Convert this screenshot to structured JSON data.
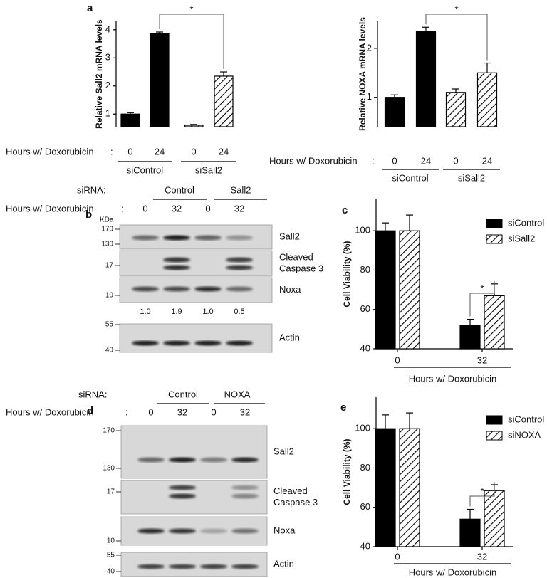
{
  "panels": [
    "a",
    "b",
    "c",
    "d",
    "e"
  ],
  "chart_data": [
    {
      "type": "bar",
      "ylabel": "Relative Sall2 mRNA levels",
      "xlabel": "Hours w/ Doxorubicin",
      "xlabel_sep": ":",
      "categories": [
        "0",
        "24"
      ],
      "ylim": [
        0.55,
        4.3
      ],
      "yticks": [
        1,
        2,
        3,
        4
      ],
      "significance": "*",
      "series": [
        {
          "name": "siControl",
          "color": "#000000",
          "pattern": "solid",
          "values": [
            1.0,
            3.87
          ],
          "errors": [
            0.05,
            0.05
          ]
        },
        {
          "name": "siSall2",
          "color": "#000000",
          "pattern": "hatch",
          "values": [
            0.6,
            2.35
          ],
          "errors": [
            0.03,
            0.15
          ]
        }
      ]
    },
    {
      "type": "bar",
      "ylabel": "Relative NOXA mRNA levels",
      "xlabel": "Hours w/ Doxorubicin",
      "xlabel_sep": ":",
      "categories": [
        "0",
        "24"
      ],
      "ylim": [
        0.4,
        2.55
      ],
      "yticks": [
        1,
        2
      ],
      "significance": "*",
      "series": [
        {
          "name": "siControl",
          "color": "#000000",
          "pattern": "solid",
          "values": [
            1.0,
            2.35
          ],
          "errors": [
            0.05,
            0.08
          ]
        },
        {
          "name": "siSall2",
          "color": "#000000",
          "pattern": "hatch",
          "values": [
            1.1,
            1.5
          ],
          "errors": [
            0.07,
            0.2
          ]
        }
      ]
    },
    {
      "type": "bar",
      "ylabel": "Cell Viability (%)",
      "xlabel": "Hours w/ Doxorubicin",
      "legend": "upper right",
      "categories": [
        "0",
        "32"
      ],
      "ylim": [
        40,
        116
      ],
      "yticks": [
        40,
        60,
        80,
        100
      ],
      "significance": "*",
      "series": [
        {
          "name": "siControl",
          "color": "#000000",
          "pattern": "solid",
          "values": [
            100,
            52
          ],
          "errors": [
            4,
            3
          ]
        },
        {
          "name": "siSall2",
          "color": "#000000",
          "pattern": "hatch",
          "values": [
            100,
            67
          ],
          "errors": [
            8,
            6
          ]
        }
      ]
    },
    {
      "type": "bar",
      "ylabel": "Cell Viability (%)",
      "xlabel": "Hours w/ Doxorubicin",
      "legend": "upper right",
      "categories": [
        "0",
        "32"
      ],
      "ylim": [
        40,
        116
      ],
      "yticks": [
        40,
        60,
        80,
        100
      ],
      "significance": "*",
      "series": [
        {
          "name": "siControl",
          "color": "#000000",
          "pattern": "solid",
          "values": [
            100,
            54
          ],
          "errors": [
            7,
            5
          ]
        },
        {
          "name": "siNOXA",
          "color": "#000000",
          "pattern": "hatch",
          "values": [
            100,
            68.5
          ],
          "errors": [
            8,
            3
          ]
        }
      ]
    }
  ],
  "blots": [
    {
      "sirna_label": "siRNA:",
      "groups": [
        "Control",
        "Sall2"
      ],
      "row_label": "Hours w/ Doxorubicin",
      "row_sep": ":",
      "lanes": [
        "0",
        "32",
        "0",
        "32"
      ],
      "unit": "KDa",
      "panels": [
        {
          "label_lines": [
            "Sall2"
          ],
          "markers": [
            "170",
            "130"
          ]
        },
        {
          "label_lines": [
            "Cleaved",
            "Caspase 3"
          ],
          "markers": [
            "17"
          ]
        },
        {
          "label_lines": [
            "Noxa"
          ],
          "markers": [
            "10"
          ],
          "quantification": [
            "1.0",
            "1.9",
            "1.0",
            "0.5"
          ]
        },
        {
          "label_lines": [
            "Actin"
          ],
          "markers": [
            "55",
            "40"
          ]
        }
      ]
    },
    {
      "sirna_label": "siRNA:",
      "groups": [
        "Control",
        "NOXA"
      ],
      "row_label": "Hours w/  Doxorubicin",
      "row_sep": ":",
      "lanes": [
        "0",
        "32",
        "0",
        "32"
      ],
      "panels": [
        {
          "label_lines": [
            "Sall2"
          ],
          "markers": [
            "170",
            "130"
          ]
        },
        {
          "label_lines": [
            "Cleaved",
            "Caspase 3"
          ],
          "markers": [
            "17"
          ]
        },
        {
          "label_lines": [
            "Noxa"
          ],
          "markers": [
            "10"
          ]
        },
        {
          "label_lines": [
            "Actin"
          ],
          "markers": [
            "55",
            "40"
          ]
        }
      ]
    }
  ]
}
